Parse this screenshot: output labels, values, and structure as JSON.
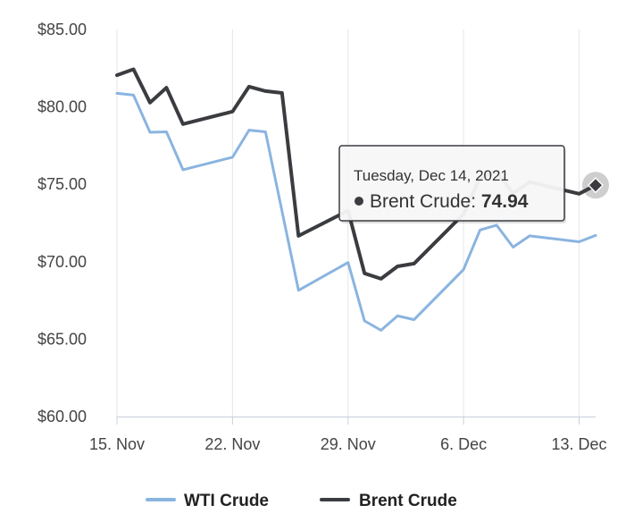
{
  "chart_data": {
    "type": "line",
    "title": "",
    "xlabel": "",
    "ylabel": "",
    "x_tick_labels": [
      "15. Nov",
      "22. Nov",
      "29. Nov",
      "6. Dec",
      "13. Dec"
    ],
    "x_ticks": [
      "2021-11-15",
      "2021-11-22",
      "2021-11-29",
      "2021-12-06",
      "2021-12-13"
    ],
    "xlim": [
      "2021-11-15",
      "2021-12-14"
    ],
    "y_tick_labels": [
      "$60.00",
      "$65.00",
      "$70.00",
      "$75.00",
      "$80.00",
      "$85.00"
    ],
    "y_ticks": [
      60,
      65,
      70,
      75,
      80,
      85
    ],
    "ylim": [
      60,
      85
    ],
    "grid": {
      "vertical": true,
      "horizontal": false
    },
    "legend_position": "bottom-center",
    "series": [
      {
        "name": "WTI Crude",
        "color": "#8ab4e0",
        "points": [
          [
            "2021-11-15",
            80.88
          ],
          [
            "2021-11-16",
            80.76
          ],
          [
            "2021-11-17",
            78.36
          ],
          [
            "2021-11-18",
            78.39
          ],
          [
            "2021-11-19",
            75.94
          ],
          [
            "2021-11-22",
            76.75
          ],
          [
            "2021-11-23",
            78.5
          ],
          [
            "2021-11-24",
            78.39
          ],
          [
            "2021-11-26",
            68.15
          ],
          [
            "2021-11-29",
            69.95
          ],
          [
            "2021-11-30",
            66.18
          ],
          [
            "2021-12-01",
            65.57
          ],
          [
            "2021-12-02",
            66.5
          ],
          [
            "2021-12-03",
            66.26
          ],
          [
            "2021-12-06",
            69.49
          ],
          [
            "2021-12-07",
            72.05
          ],
          [
            "2021-12-08",
            72.36
          ],
          [
            "2021-12-09",
            70.94
          ],
          [
            "2021-12-10",
            71.67
          ],
          [
            "2021-12-13",
            71.29
          ],
          [
            "2021-12-14",
            71.7
          ]
        ]
      },
      {
        "name": "Brent Crude",
        "color": "#3a3c40",
        "points": [
          [
            "2021-11-15",
            82.05
          ],
          [
            "2021-11-16",
            82.43
          ],
          [
            "2021-11-17",
            80.28
          ],
          [
            "2021-11-18",
            81.24
          ],
          [
            "2021-11-19",
            78.89
          ],
          [
            "2021-11-22",
            79.7
          ],
          [
            "2021-11-23",
            81.31
          ],
          [
            "2021-11-24",
            81.02
          ],
          [
            "2021-11-25",
            80.9
          ],
          [
            "2021-11-26",
            71.67
          ],
          [
            "2021-11-29",
            73.3
          ],
          [
            "2021-11-30",
            69.25
          ],
          [
            "2021-12-01",
            68.9
          ],
          [
            "2021-12-02",
            69.7
          ],
          [
            "2021-12-03",
            69.88
          ],
          [
            "2021-12-06",
            73.08
          ],
          [
            "2021-12-07",
            75.44
          ],
          [
            "2021-12-08",
            75.82
          ],
          [
            "2021-12-09",
            74.42
          ],
          [
            "2021-12-10",
            75.15
          ],
          [
            "2021-12-13",
            74.39
          ],
          [
            "2021-12-14",
            74.94
          ]
        ]
      }
    ],
    "tooltip": {
      "date": "Tuesday, Dec 14, 2021",
      "series_name": "Brent Crude: ",
      "value": "74.94",
      "point": [
        "2021-12-14",
        74.94
      ]
    }
  }
}
